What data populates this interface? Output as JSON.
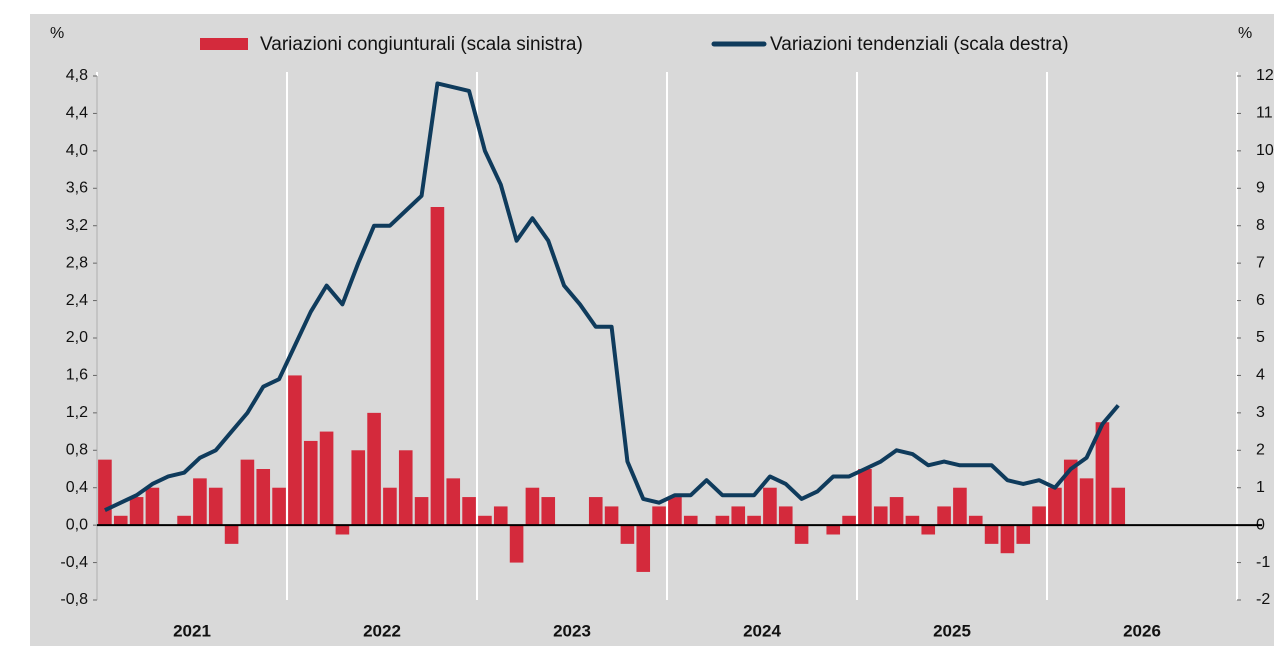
{
  "chart_data": {
    "type": "bar-line",
    "ylabel": "%",
    "y2label": "%",
    "categories": [
      null,
      null,
      null,
      null,
      null,
      null,
      "2021",
      null,
      null,
      null,
      null,
      null,
      null,
      null,
      null,
      null,
      null,
      null,
      "2022",
      null,
      null,
      null,
      null,
      null,
      null,
      null,
      null,
      null,
      null,
      null,
      "2023",
      null,
      null,
      null,
      null,
      null,
      null,
      null,
      null,
      null,
      null,
      null,
      "2024",
      null,
      null,
      null,
      null,
      null,
      null,
      null,
      null,
      null,
      null,
      null,
      "2025",
      null,
      null,
      null,
      null,
      null,
      null,
      null,
      null,
      null,
      null,
      null,
      "2026",
      null,
      null,
      null,
      null,
      null
    ],
    "series": [
      {
        "name": "Variazioni congiunturali (scala sinistra)",
        "type": "bar",
        "color": "#d42a3c",
        "values": [
          0.7,
          0.1,
          0.3,
          0.4,
          0.0,
          0.1,
          0.5,
          0.4,
          -0.2,
          0.7,
          0.6,
          0.4,
          1.6,
          0.9,
          1.0,
          -0.1,
          0.8,
          1.2,
          0.4,
          0.8,
          0.3,
          3.4,
          0.5,
          0.3,
          0.1,
          0.2,
          -0.4,
          0.4,
          0.3,
          0.0,
          0.0,
          0.3,
          0.2,
          -0.2,
          -0.5,
          0.2,
          0.3,
          0.1,
          0.0,
          0.1,
          0.2,
          0.1,
          0.4,
          0.2,
          -0.2,
          0.0,
          -0.1,
          0.1,
          0.6,
          0.2,
          0.3,
          0.1,
          -0.1,
          0.2,
          0.4,
          0.1,
          -0.2,
          -0.3,
          -0.2,
          0.2,
          0.4,
          0.7,
          0.5,
          1.1,
          0.4,
          null,
          null,
          null,
          null,
          null,
          null,
          null
        ]
      },
      {
        "name": "Variazioni tendenziali (scala destra)",
        "type": "line",
        "axis": "y2",
        "color": "#0f3b5c",
        "values": [
          0.4,
          0.6,
          0.8,
          1.1,
          1.3,
          1.4,
          1.8,
          2.0,
          2.5,
          3.0,
          3.7,
          3.9,
          4.8,
          5.7,
          6.4,
          5.9,
          7.0,
          8.0,
          8.0,
          8.4,
          8.8,
          11.8,
          11.7,
          11.6,
          10.0,
          9.1,
          7.6,
          8.2,
          7.6,
          6.4,
          5.9,
          5.3,
          5.3,
          1.7,
          0.7,
          0.6,
          0.8,
          0.8,
          1.2,
          0.8,
          0.8,
          0.8,
          1.3,
          1.1,
          0.7,
          0.9,
          1.3,
          1.3,
          1.5,
          1.7,
          2.0,
          1.9,
          1.6,
          1.7,
          1.6,
          1.6,
          1.6,
          1.2,
          1.1,
          1.2,
          1.0,
          1.5,
          1.8,
          2.7,
          3.2,
          null,
          null,
          null,
          null,
          null,
          null,
          null
        ]
      }
    ],
    "ylim": [
      -0.8,
      4.8
    ],
    "yticks": [
      {
        "value": -0.8,
        "label": "-0,8"
      },
      {
        "value": -0.4,
        "label": "-0,4"
      },
      {
        "value": 0,
        "label": "0,0"
      },
      {
        "value": 0.4,
        "label": "0,4"
      },
      {
        "value": 0.8,
        "label": "0,8"
      },
      {
        "value": 1.2,
        "label": "1,2"
      },
      {
        "value": 1.6,
        "label": "1,6"
      },
      {
        "value": 2.0,
        "label": "2,0"
      },
      {
        "value": 2.4,
        "label": "2,4"
      },
      {
        "value": 2.8,
        "label": "2,8"
      },
      {
        "value": 3.2,
        "label": "3,2"
      },
      {
        "value": 3.6,
        "label": "3,6"
      },
      {
        "value": 4.0,
        "label": "4,0"
      },
      {
        "value": 4.4,
        "label": "4,4"
      },
      {
        "value": 4.8,
        "label": "4,8"
      }
    ],
    "y2lim": [
      -2,
      12
    ],
    "y2ticks": [
      -2,
      -1,
      0,
      1,
      2,
      3,
      4,
      5,
      6,
      7,
      8,
      9,
      10,
      11,
      12
    ],
    "grid": false
  }
}
